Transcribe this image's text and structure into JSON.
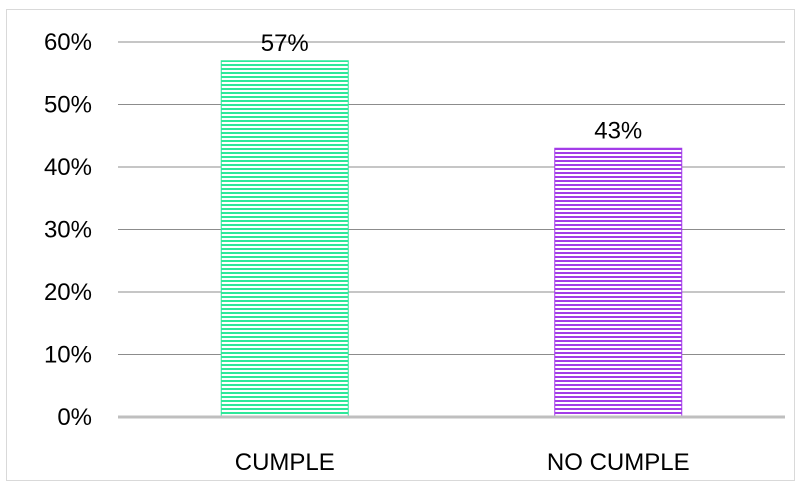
{
  "chart_data": {
    "type": "bar",
    "title": "",
    "xlabel": "",
    "ylabel": "",
    "categories": [
      "CUMPLE",
      "NO CUMPLE"
    ],
    "values": [
      57,
      43
    ],
    "data_labels": [
      "57%",
      "43%"
    ],
    "ylim": [
      0,
      60
    ],
    "y_ticks": [
      0,
      10,
      20,
      30,
      40,
      50,
      60
    ],
    "y_tick_labels": [
      "0%",
      "10%",
      "20%",
      "30%",
      "40%",
      "50%",
      "60%"
    ],
    "grid": true,
    "legend": "none",
    "bar_colors": [
      "#2ee89a",
      "#a33de8"
    ],
    "bar_pattern": "horizontal-stripes"
  }
}
